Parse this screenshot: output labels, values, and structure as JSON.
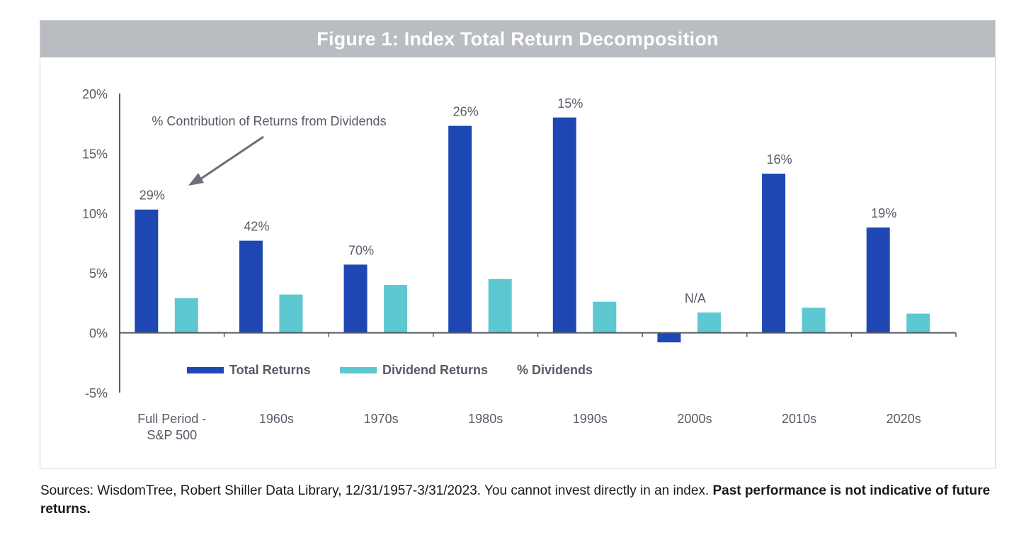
{
  "title": "Figure 1: Index Total Return Decomposition",
  "colors": {
    "total_returns": "#1f47b4",
    "dividend_returns": "#5ec8d2",
    "axis": "#555b66",
    "text": "#555b66",
    "title_bar": "#b9bcc0"
  },
  "annotation": "% Contribution of Returns from Dividends",
  "legend": {
    "total_returns": "Total Returns",
    "dividend_returns": "Dividend Returns",
    "pct_dividends": "% Dividends"
  },
  "source": {
    "text": "Sources: WisdomTree, Robert Shiller Data Library, 12/31/1957-3/31/2023. You cannot invest directly in an index.",
    "bold": "Past performance is not indicative of future returns."
  },
  "chart_data": {
    "type": "bar",
    "title": "Figure 1: Index Total Return Decomposition",
    "categories": [
      "Full Period - S&P 500",
      "1960s",
      "1970s",
      "1980s",
      "1990s",
      "2000s",
      "2010s",
      "2020s"
    ],
    "category_lines": [
      [
        "Full Period -",
        "S&P 500"
      ],
      [
        "1960s"
      ],
      [
        "1970s"
      ],
      [
        "1980s"
      ],
      [
        "1990s"
      ],
      [
        "2000s"
      ],
      [
        "2010s"
      ],
      [
        "2020s"
      ]
    ],
    "series": [
      {
        "name": "Total Returns",
        "values": [
          10.3,
          7.7,
          5.7,
          17.3,
          18.0,
          -0.8,
          13.3,
          8.8
        ]
      },
      {
        "name": "Dividend Returns",
        "values": [
          2.9,
          3.2,
          4.0,
          4.5,
          2.6,
          1.7,
          2.1,
          1.6
        ]
      }
    ],
    "pct_dividends_labels": [
      "29%",
      "42%",
      "70%",
      "26%",
      "15%",
      "N/A",
      "16%",
      "19%"
    ],
    "y_ticks": [
      "20%",
      "15%",
      "10%",
      "5%",
      "0%",
      "-5%"
    ],
    "y_tick_values": [
      20,
      15,
      10,
      5,
      0,
      -5
    ],
    "ylim": [
      -5,
      20
    ],
    "legend_position": "bottom",
    "grid": false
  }
}
